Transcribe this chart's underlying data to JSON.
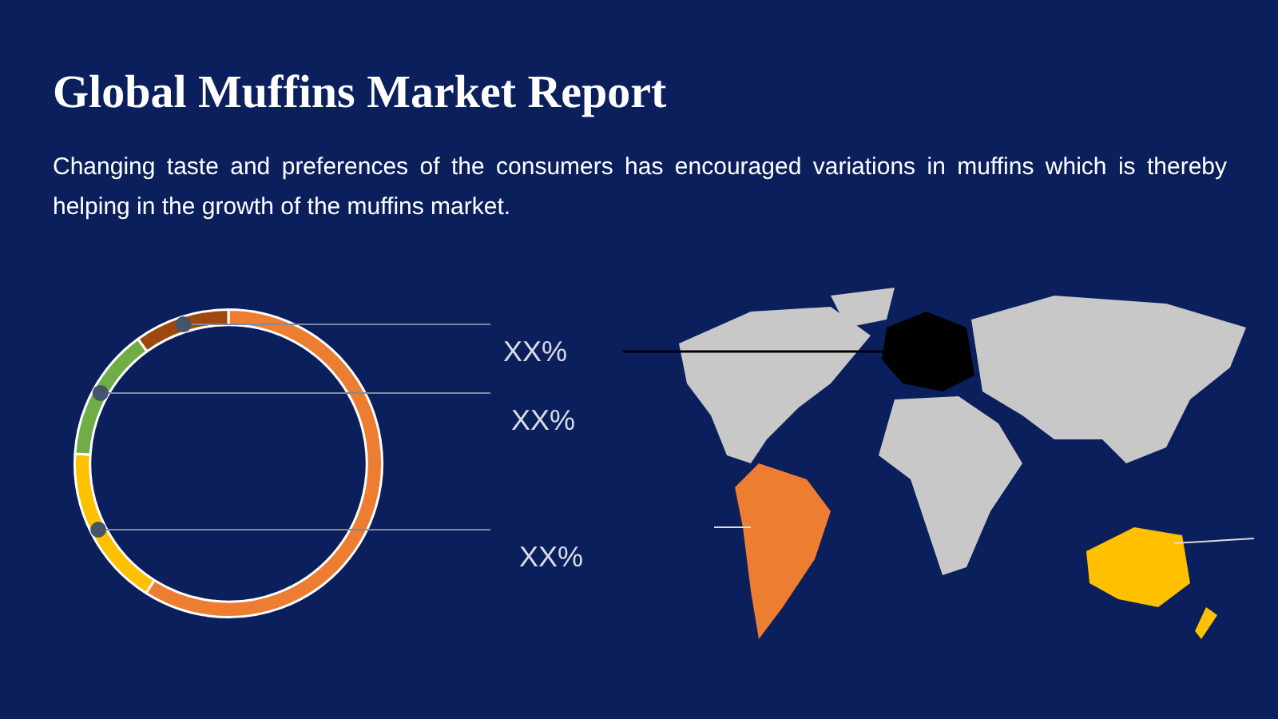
{
  "chart_data": {
    "type": "donut",
    "title": "Global Muffins Market Report",
    "subtitle": "Changing taste and preferences of the consumers has encouraged variations in muffins which is thereby helping in the growth of the muffins market.",
    "categories": [
      null,
      null,
      null,
      null
    ],
    "values": [
      59,
      17,
      14,
      10
    ],
    "colors": [
      "#ed7d31",
      "#ffc000",
      "#70ad47",
      "#9e480e"
    ],
    "annotations": [
      "XX%",
      "XX%",
      "XX%"
    ]
  }
}
